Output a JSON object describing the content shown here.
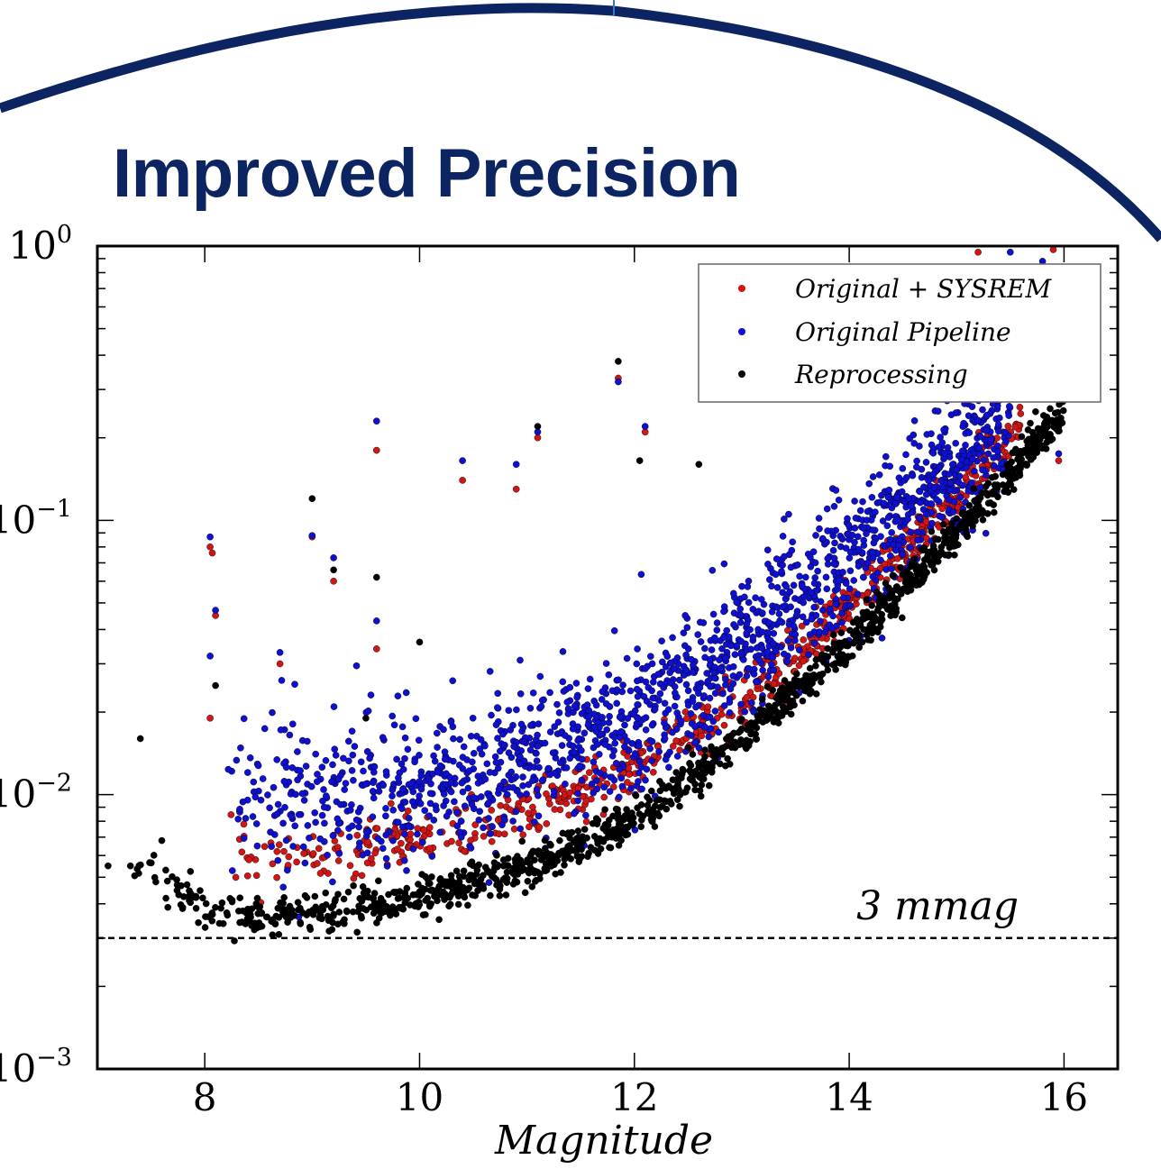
{
  "slide": {
    "title": "Improved Precision",
    "title_color": "#0c2461",
    "decoration_color": "#0c2461"
  },
  "chart_data": {
    "type": "scatter",
    "xlabel": "Magnitude",
    "ylabel": "",
    "xlim": [
      7.0,
      16.5
    ],
    "ylim": [
      0.001,
      1.0
    ],
    "yscale": "log",
    "xticks": [
      8,
      10,
      12,
      14,
      16
    ],
    "xtick_labels": [
      "8",
      "10",
      "12",
      "14",
      "16"
    ],
    "yticks": [
      0.001,
      0.01,
      0.1,
      1
    ],
    "ytick_labels": [
      {
        "base": "10",
        "exp": "−3"
      },
      {
        "base": "10",
        "exp": "−2"
      },
      {
        "base": "10",
        "exp": "−1"
      },
      {
        "base": "10",
        "exp": "0"
      }
    ],
    "grid": false,
    "legend_position": "top-right",
    "reference_line": {
      "y": 0.003,
      "style": "dashed",
      "label": "3 mmag"
    },
    "series": [
      {
        "name": "Original + SYSREM",
        "color": "#d01515",
        "trend": [
          [
            8.2,
            0.0062
          ],
          [
            9.0,
            0.0058
          ],
          [
            10.0,
            0.0068
          ],
          [
            11.0,
            0.0085
          ],
          [
            12.0,
            0.0125
          ],
          [
            13.0,
            0.022
          ],
          [
            14.0,
            0.05
          ],
          [
            15.0,
            0.12
          ],
          [
            15.6,
            0.23
          ]
        ],
        "scatter_dex": 0.05,
        "n_points": 700,
        "outliers": [
          [
            8.05,
            0.08
          ],
          [
            8.07,
            0.076
          ],
          [
            8.1,
            0.045
          ],
          [
            8.05,
            0.019
          ],
          [
            8.7,
            0.03
          ],
          [
            9.0,
            0.087
          ],
          [
            9.2,
            0.06
          ],
          [
            9.6,
            0.18
          ],
          [
            9.6,
            0.034
          ],
          [
            10.4,
            0.14
          ],
          [
            10.9,
            0.13
          ],
          [
            11.1,
            0.2
          ],
          [
            11.85,
            0.33
          ],
          [
            12.1,
            0.21
          ],
          [
            15.95,
            0.165
          ],
          [
            15.2,
            0.95
          ],
          [
            15.9,
            0.97
          ]
        ]
      },
      {
        "name": "Original Pipeline",
        "color": "#0f0fd0",
        "trend": [
          [
            8.2,
            0.01
          ],
          [
            9.0,
            0.0095
          ],
          [
            10.0,
            0.0105
          ],
          [
            11.0,
            0.0135
          ],
          [
            12.0,
            0.019
          ],
          [
            13.0,
            0.034
          ],
          [
            14.0,
            0.072
          ],
          [
            15.0,
            0.16
          ],
          [
            15.5,
            0.25
          ]
        ],
        "scatter_dex": 0.11,
        "n_points": 1700,
        "outliers": [
          [
            8.05,
            0.087
          ],
          [
            8.05,
            0.032
          ],
          [
            8.1,
            0.047
          ],
          [
            8.7,
            0.033
          ],
          [
            9.0,
            0.088
          ],
          [
            9.2,
            0.073
          ],
          [
            9.6,
            0.23
          ],
          [
            9.6,
            0.043
          ],
          [
            10.4,
            0.165
          ],
          [
            10.9,
            0.16
          ],
          [
            11.1,
            0.21
          ],
          [
            11.85,
            0.32
          ],
          [
            12.1,
            0.22
          ],
          [
            15.95,
            0.175
          ],
          [
            15.5,
            0.95
          ],
          [
            15.8,
            0.88
          ]
        ]
      },
      {
        "name": "Reprocessing",
        "color": "#000000",
        "trend": [
          [
            7.3,
            0.0055
          ],
          [
            8.2,
            0.0036
          ],
          [
            9.0,
            0.0037
          ],
          [
            10.0,
            0.0042
          ],
          [
            11.0,
            0.0055
          ],
          [
            12.0,
            0.0082
          ],
          [
            13.0,
            0.016
          ],
          [
            14.0,
            0.036
          ],
          [
            15.0,
            0.09
          ],
          [
            16.0,
            0.25
          ]
        ],
        "scatter_dex": 0.035,
        "n_points": 1300,
        "outliers": [
          [
            7.4,
            0.016
          ],
          [
            7.1,
            0.0055
          ],
          [
            7.6,
            0.0068
          ],
          [
            9.0,
            0.12
          ],
          [
            9.2,
            0.066
          ],
          [
            9.6,
            0.062
          ],
          [
            10.0,
            0.036
          ],
          [
            11.1,
            0.22
          ],
          [
            11.85,
            0.38
          ],
          [
            12.05,
            0.165
          ],
          [
            12.6,
            0.16
          ],
          [
            8.1,
            0.025
          ],
          [
            9.5,
            0.019
          ]
        ]
      }
    ]
  }
}
